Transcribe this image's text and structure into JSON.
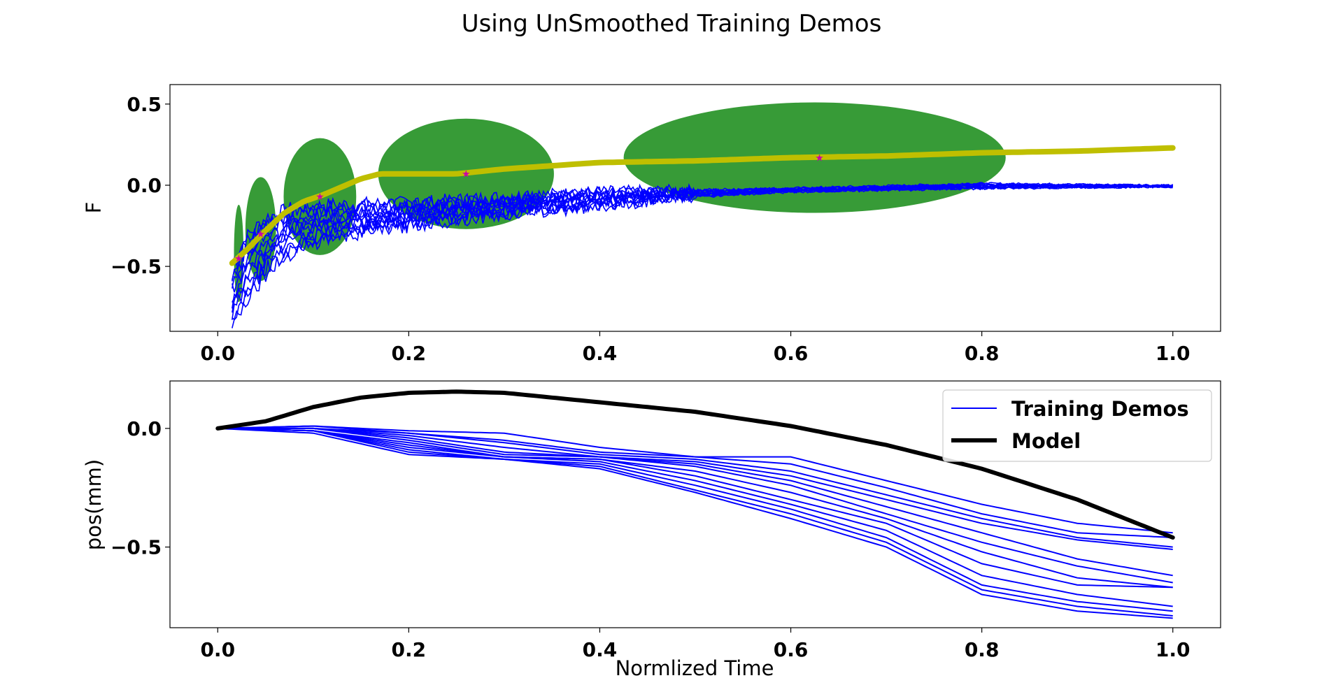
{
  "figure": {
    "title": "Using UnSmoothed Training Demos"
  },
  "chart_data": [
    {
      "type": "line",
      "panel": "top",
      "title": "",
      "xlabel": "",
      "ylabel": "F",
      "xlim": [
        -0.05,
        1.05
      ],
      "ylim": [
        -0.9,
        0.62
      ],
      "xticks": [
        "0.0",
        "0.2",
        "0.4",
        "0.6",
        "0.8",
        "1.0"
      ],
      "yticks": [
        "0.5",
        "0.0",
        "−0.5"
      ],
      "ytick_values": [
        0.5,
        0.0,
        -0.5
      ],
      "xtick_values": [
        0.0,
        0.2,
        0.4,
        0.6,
        0.8,
        1.0
      ],
      "grid": false,
      "colors": {
        "demos": "#0000ff",
        "model": "#bfbf00",
        "gaussians": "#339933",
        "centers": "#cc00aa"
      },
      "gaussians": [
        {
          "cx": 0.022,
          "cy": -0.42,
          "rx": 0.005,
          "ry": 0.3
        },
        {
          "cx": 0.045,
          "cy": -0.27,
          "rx": 0.016,
          "ry": 0.32
        },
        {
          "cx": 0.107,
          "cy": -0.07,
          "rx": 0.038,
          "ry": 0.36
        },
        {
          "cx": 0.26,
          "cy": 0.07,
          "rx": 0.092,
          "ry": 0.34
        },
        {
          "cx": 0.625,
          "cy": 0.17,
          "rx": 0.2,
          "ry": 0.34
        }
      ],
      "centers": [
        {
          "x": 0.022,
          "y": -0.45
        },
        {
          "x": 0.045,
          "y": -0.3
        },
        {
          "x": 0.107,
          "y": -0.07
        },
        {
          "x": 0.26,
          "y": 0.07
        },
        {
          "x": 0.63,
          "y": 0.17
        }
      ],
      "model_curve": {
        "x": [
          0.015,
          0.03,
          0.05,
          0.07,
          0.09,
          0.11,
          0.13,
          0.15,
          0.17,
          0.2,
          0.25,
          0.3,
          0.35,
          0.4,
          0.5,
          0.6,
          0.7,
          0.8,
          0.9,
          1.0
        ],
        "y": [
          -0.48,
          -0.4,
          -0.28,
          -0.17,
          -0.1,
          -0.06,
          -0.01,
          0.04,
          0.07,
          0.07,
          0.07,
          0.1,
          0.12,
          0.14,
          0.15,
          0.17,
          0.18,
          0.2,
          0.21,
          0.23
        ]
      },
      "demo_envelope": {
        "x": [
          0.015,
          0.03,
          0.05,
          0.08,
          0.12,
          0.2,
          0.3,
          0.4,
          0.5,
          0.6,
          0.8,
          1.0
        ],
        "upper": [
          -0.48,
          -0.32,
          -0.2,
          -0.14,
          -0.12,
          -0.11,
          -0.07,
          -0.04,
          -0.03,
          -0.02,
          0.01,
          0.0
        ],
        "lower": [
          -0.86,
          -0.7,
          -0.55,
          -0.4,
          -0.32,
          -0.25,
          -0.18,
          -0.13,
          -0.07,
          -0.04,
          -0.02,
          -0.01
        ]
      },
      "num_demos": 12
    },
    {
      "type": "line",
      "panel": "bottom",
      "title": "",
      "xlabel": "Normlized Time",
      "ylabel": "pos(mm)",
      "xlim": [
        -0.05,
        1.05
      ],
      "ylim": [
        -0.84,
        0.2
      ],
      "xticks": [
        "0.0",
        "0.2",
        "0.4",
        "0.6",
        "0.8",
        "1.0"
      ],
      "xtick_values": [
        0.0,
        0.2,
        0.4,
        0.6,
        0.8,
        1.0
      ],
      "yticks": [
        "0.0",
        "−0.5"
      ],
      "ytick_values": [
        0.0,
        -0.5
      ],
      "grid": false,
      "legend": {
        "position": "top-right",
        "entries": [
          {
            "label": "Training Demos",
            "color": "#0000ff",
            "width": "thin"
          },
          {
            "label": "Model",
            "color": "#000000",
            "width": "thick"
          }
        ]
      },
      "series": [
        {
          "name": "Model",
          "color": "#000000",
          "x": [
            0.0,
            0.05,
            0.1,
            0.15,
            0.2,
            0.25,
            0.3,
            0.35,
            0.4,
            0.5,
            0.6,
            0.7,
            0.8,
            0.9,
            1.0
          ],
          "y": [
            0.0,
            0.03,
            0.09,
            0.13,
            0.15,
            0.155,
            0.15,
            0.13,
            0.11,
            0.07,
            0.01,
            -0.07,
            -0.17,
            -0.3,
            -0.46
          ]
        }
      ],
      "demos": {
        "x": [
          0.0,
          0.1,
          0.2,
          0.3,
          0.4,
          0.5,
          0.6,
          0.7,
          0.8,
          0.9,
          1.0
        ],
        "curves": [
          [
            0.0,
            0.01,
            -0.01,
            -0.02,
            -0.08,
            -0.12,
            -0.12,
            -0.22,
            -0.32,
            -0.4,
            -0.44
          ],
          [
            0.0,
            0.01,
            -0.02,
            -0.05,
            -0.1,
            -0.12,
            -0.15,
            -0.25,
            -0.36,
            -0.44,
            -0.46
          ],
          [
            0.0,
            0.0,
            -0.02,
            -0.06,
            -0.11,
            -0.13,
            -0.18,
            -0.28,
            -0.38,
            -0.46,
            -0.5
          ],
          [
            0.0,
            0.0,
            -0.03,
            -0.08,
            -0.12,
            -0.14,
            -0.2,
            -0.3,
            -0.4,
            -0.47,
            -0.51
          ],
          [
            0.0,
            0.0,
            -0.04,
            -0.1,
            -0.12,
            -0.15,
            -0.22,
            -0.33,
            -0.44,
            -0.55,
            -0.62
          ],
          [
            0.0,
            0.0,
            -0.05,
            -0.11,
            -0.12,
            -0.16,
            -0.24,
            -0.36,
            -0.48,
            -0.58,
            -0.65
          ],
          [
            0.0,
            -0.01,
            -0.06,
            -0.12,
            -0.13,
            -0.18,
            -0.27,
            -0.38,
            -0.52,
            -0.63,
            -0.67
          ],
          [
            0.0,
            -0.01,
            -0.07,
            -0.12,
            -0.13,
            -0.2,
            -0.3,
            -0.4,
            -0.57,
            -0.66,
            -0.67
          ],
          [
            0.0,
            -0.01,
            -0.08,
            -0.12,
            -0.14,
            -0.22,
            -0.32,
            -0.43,
            -0.62,
            -0.7,
            -0.75
          ],
          [
            0.0,
            -0.01,
            -0.09,
            -0.13,
            -0.15,
            -0.24,
            -0.34,
            -0.46,
            -0.66,
            -0.73,
            -0.77
          ],
          [
            0.0,
            -0.01,
            -0.1,
            -0.13,
            -0.16,
            -0.26,
            -0.36,
            -0.48,
            -0.68,
            -0.75,
            -0.79
          ],
          [
            0.0,
            -0.02,
            -0.11,
            -0.13,
            -0.17,
            -0.27,
            -0.38,
            -0.5,
            -0.7,
            -0.77,
            -0.8
          ]
        ]
      }
    }
  ]
}
